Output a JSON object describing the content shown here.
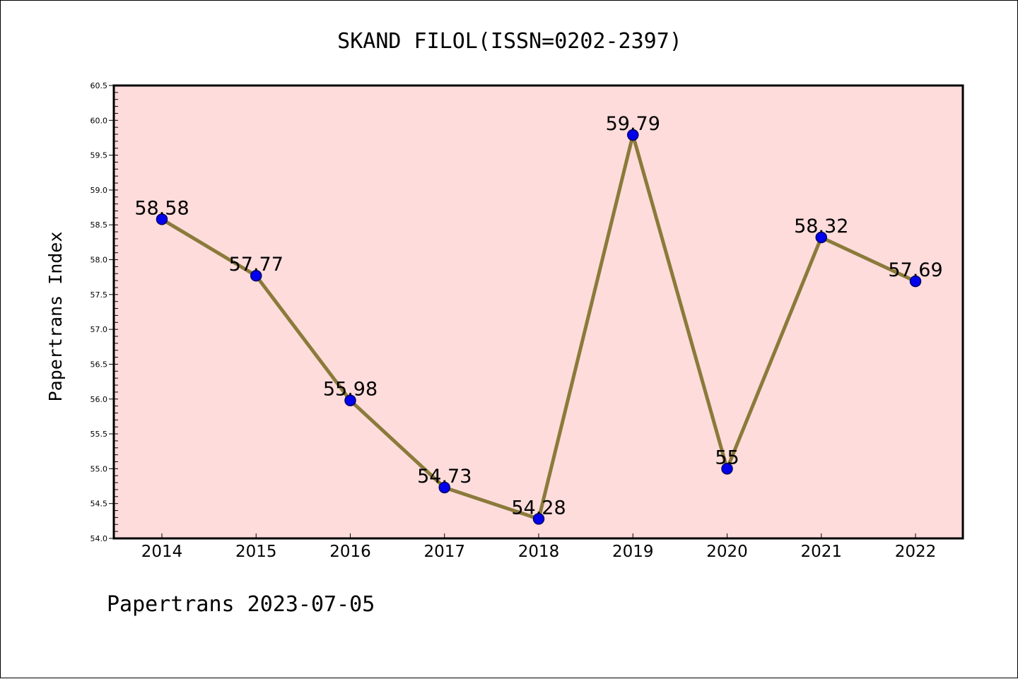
{
  "chart_data": {
    "type": "line",
    "title": "SKAND FILOL(ISSN=0202-2397)",
    "xlabel": "",
    "ylabel": "Papertrans Index",
    "categories": [
      "2014",
      "2015",
      "2016",
      "2017",
      "2018",
      "2019",
      "2020",
      "2021",
      "2022"
    ],
    "series": [
      {
        "name": "Papertrans Index",
        "values": [
          58.58,
          57.77,
          55.98,
          54.73,
          54.28,
          59.79,
          55,
          58.32,
          57.69
        ],
        "labels": [
          "58.58",
          "57.77",
          "55.98",
          "54.73",
          "54.28",
          "59.79",
          "55",
          "58.32",
          "57.69"
        ]
      }
    ],
    "ylim": [
      54.0,
      60.5
    ],
    "y_ticks": [
      "54.0",
      "54.5",
      "55.0",
      "55.5",
      "56.0",
      "56.5",
      "57.0",
      "57.5",
      "58.0",
      "58.5",
      "59.0",
      "59.5",
      "60.0",
      "60.5"
    ],
    "grid": false,
    "footer": "Papertrans 2023-07-05"
  },
  "colors": {
    "plot_background": "#fddcdb",
    "line": "#8b7a3a",
    "marker_fill": "#0000ee",
    "marker_stroke": "#000066",
    "text": "#000000"
  }
}
